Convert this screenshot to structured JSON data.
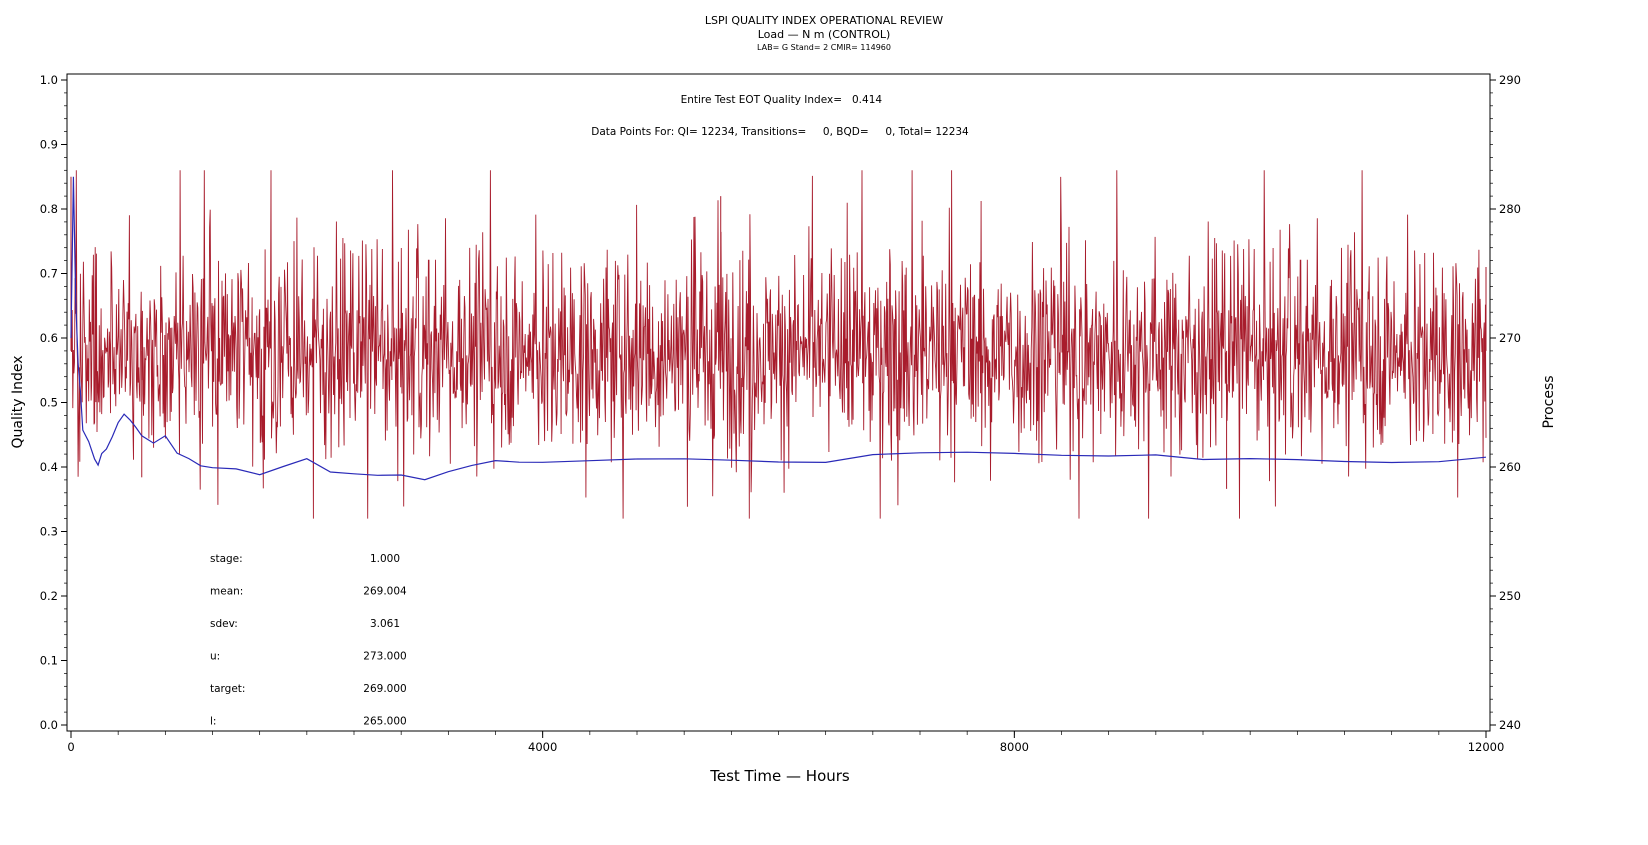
{
  "titles": {
    "line1": "LSPI QUALITY INDEX OPERATIONAL REVIEW",
    "line2": "Load — N m (CONTROL)",
    "line3": "LAB= G Stand= 2 CMIR= 114960"
  },
  "annotations": {
    "eot_label": "Entire Test EOT Quality Index=",
    "eot_value": "0.414",
    "data_points": "Data Points For: QI= 12234, Transitions=     0, BQD=     0, Total= 12234"
  },
  "stats": [
    {
      "label": "stage:",
      "value": "1.000"
    },
    {
      "label": "mean:",
      "value": "269.004"
    },
    {
      "label": "sdev:",
      "value": "3.061"
    },
    {
      "label": "u:",
      "value": "273.000"
    },
    {
      "label": "target:",
      "value": "269.000"
    },
    {
      "label": "l:",
      "value": "265.000"
    }
  ],
  "colors": {
    "process": "#a81c2c",
    "quality_index": "#2a2ab8"
  },
  "chart_data": {
    "type": "line",
    "xlabel": "Test Time — Hours",
    "ylabel": "Quality Index",
    "y2label": "Process",
    "xlim": [
      0,
      12000
    ],
    "ylim": [
      0.0,
      1.0
    ],
    "y2lim": [
      240,
      290
    ],
    "xticks": [
      0,
      4000,
      8000,
      12000
    ],
    "yticks": [
      0.0,
      0.1,
      0.2,
      0.3,
      0.4,
      0.5,
      0.6,
      0.7,
      0.8,
      0.9,
      1.0
    ],
    "y2ticks": [
      240,
      250,
      260,
      270,
      280,
      290
    ],
    "grid": false,
    "series": [
      {
        "name": "Process",
        "axis": "right",
        "note_points": 12234,
        "mean": 269.004,
        "sdev": 3.061,
        "extremes": [
          {
            "x": 0,
            "y": 282.5
          },
          {
            "x": 5510,
            "y": 281.0
          },
          {
            "x": 12000,
            "y": 275.5
          },
          {
            "x": 9800,
            "y": 258.3
          },
          {
            "x": 600,
            "y": 259.2
          }
        ]
      },
      {
        "name": "Quality Index",
        "axis": "left",
        "x": [
          0,
          20,
          40,
          60,
          80,
          100,
          150,
          200,
          230,
          260,
          300,
          350,
          400,
          450,
          500,
          550,
          600,
          700,
          800,
          900,
          1000,
          1100,
          1200,
          1400,
          1600,
          1800,
          2000,
          2200,
          2400,
          2600,
          2800,
          3000,
          3200,
          3400,
          3600,
          3800,
          4000,
          4400,
          4800,
          5200,
          5600,
          6000,
          6400,
          6800,
          7200,
          7600,
          8000,
          8400,
          8800,
          9200,
          9600,
          10000,
          10400,
          10800,
          11200,
          11600,
          12000
        ],
        "values": [
          0.6,
          0.85,
          0.66,
          0.56,
          0.52,
          0.46,
          0.44,
          0.41,
          0.4,
          0.42,
          0.43,
          0.45,
          0.47,
          0.48,
          0.47,
          0.46,
          0.45,
          0.44,
          0.45,
          0.42,
          0.41,
          0.4,
          0.4,
          0.4,
          0.39,
          0.4,
          0.41,
          0.39,
          0.39,
          0.39,
          0.39,
          0.38,
          0.39,
          0.4,
          0.41,
          0.41,
          0.41,
          0.41,
          0.41,
          0.41,
          0.41,
          0.41,
          0.41,
          0.42,
          0.42,
          0.42,
          0.42,
          0.42,
          0.42,
          0.42,
          0.41,
          0.41,
          0.41,
          0.41,
          0.41,
          0.41,
          0.414
        ]
      }
    ]
  }
}
